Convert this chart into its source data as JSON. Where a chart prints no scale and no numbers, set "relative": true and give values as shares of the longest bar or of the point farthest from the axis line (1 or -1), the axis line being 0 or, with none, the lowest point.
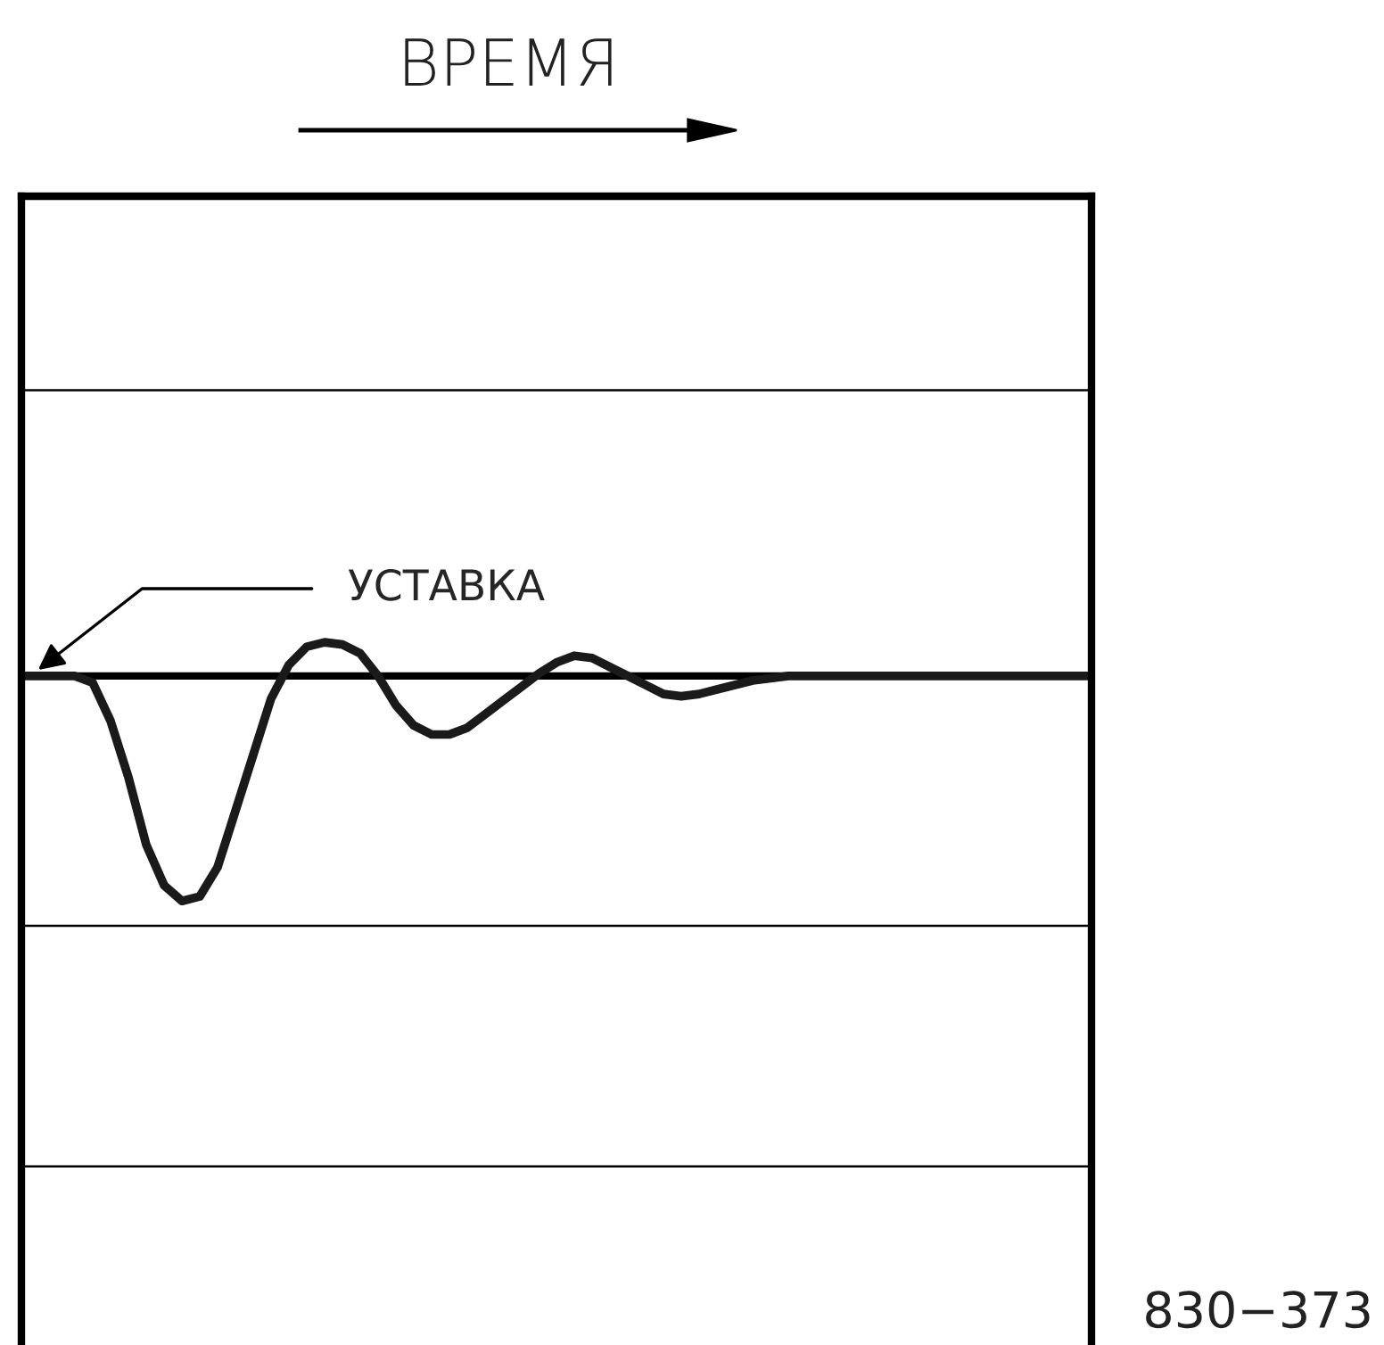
{
  "chart_data": {
    "type": "line",
    "relative": true,
    "categories": [
      null,
      null,
      null,
      null,
      null,
      null,
      null,
      null,
      null,
      null,
      null,
      null,
      null,
      null,
      null,
      null,
      null,
      null,
      null,
      null,
      null,
      null,
      null,
      null,
      null,
      null,
      null,
      null,
      null,
      null,
      null,
      null,
      null,
      null,
      null,
      null,
      null,
      null,
      null,
      null,
      null,
      null,
      null,
      null,
      null,
      null,
      null,
      null,
      null,
      null,
      null,
      null,
      null,
      null,
      null,
      null,
      null,
      null,
      null,
      null,
      null
    ],
    "series": [
      {
        "color": "#1a1a1a",
        "values": [
          0,
          0,
          0,
          0,
          -0.03,
          -0.2,
          -0.45,
          -0.75,
          -0.93,
          -1.0,
          -0.98,
          -0.85,
          -0.6,
          -0.35,
          -0.1,
          0.05,
          0.13,
          0.15,
          0.14,
          0.1,
          0.0,
          -0.13,
          -0.22,
          -0.26,
          -0.26,
          -0.23,
          -0.17,
          -0.11,
          -0.05,
          0.01,
          0.06,
          0.09,
          0.08,
          0.04,
          0.0,
          -0.04,
          -0.08,
          -0.09,
          -0.08,
          -0.06,
          -0.04,
          -0.02,
          -0.01,
          0,
          0,
          0,
          0,
          0,
          0,
          0,
          0,
          0,
          0,
          0,
          0,
          0,
          0,
          0,
          0,
          0,
          0
        ]
      }
    ],
    "ref_lines": [
      {
        "axis": "y",
        "value": 1.27
      },
      {
        "axis": "y",
        "value": 0,
        "label": "УСТАВКА"
      },
      {
        "axis": "y",
        "value": -1.11
      },
      {
        "axis": "y",
        "value": -2.18
      }
    ],
    "annotations": [
      "ВРЕМЯ",
      "830−373"
    ],
    "marker": "none",
    "line_style": "solid"
  }
}
